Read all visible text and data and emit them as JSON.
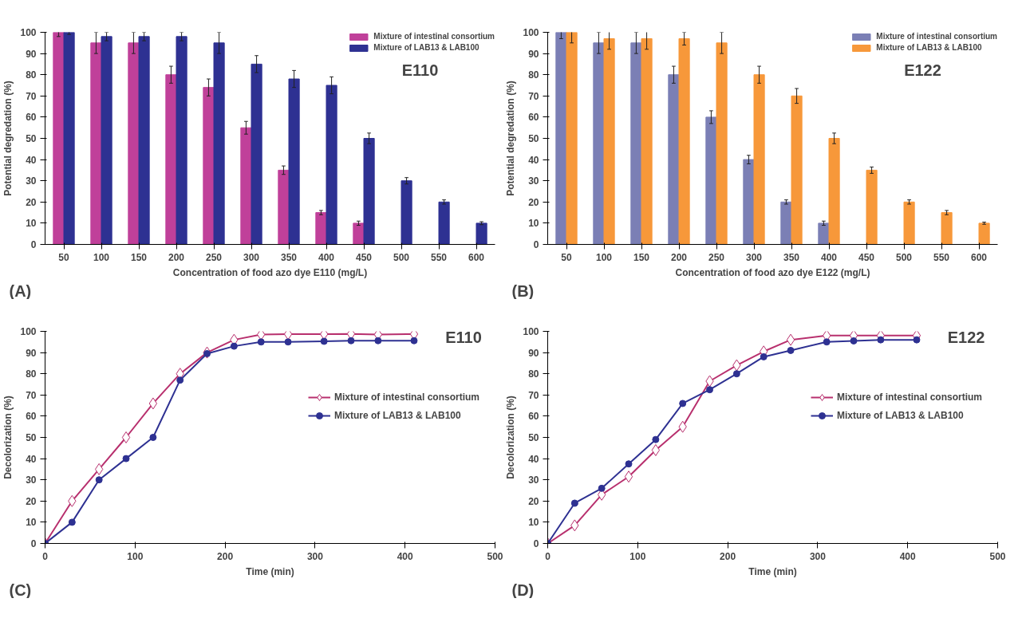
{
  "chart_data": [
    {
      "type": "bar",
      "xlabel": "Concentration of food azo dye E110 (mg/L)",
      "ylabel": "Potential degredation (%)",
      "annotations": [
        "E110",
        "(A)"
      ],
      "categories": [
        "50",
        "100",
        "150",
        "200",
        "250",
        "300",
        "350",
        "400",
        "450",
        "500",
        "550",
        "600"
      ],
      "ylim": [
        0,
        100
      ],
      "yticks": [
        0,
        10,
        20,
        30,
        40,
        50,
        60,
        70,
        80,
        90,
        100
      ],
      "grid": false,
      "legend": "top right",
      "series": [
        {
          "name": "Mixture of intestinal consortium",
          "color": "#c0409a",
          "values": [
            100,
            95,
            95,
            80,
            74,
            55,
            35,
            15,
            10,
            null,
            null,
            null
          ],
          "errors": [
            2,
            5,
            5,
            4,
            4,
            3,
            2,
            1,
            1,
            null,
            null,
            null
          ]
        },
        {
          "name": "Mixture of LAB13 & LAB100",
          "color": "#2e3192",
          "values": [
            100,
            98,
            98,
            98,
            95,
            85,
            78,
            75,
            50,
            30,
            20,
            10
          ],
          "errors": [
            1,
            2,
            2,
            2,
            5,
            4,
            4,
            4,
            2.5,
            1.5,
            1,
            0.7
          ]
        }
      ]
    },
    {
      "type": "bar",
      "xlabel": "Concentration of food azo dye E122 (mg/L)",
      "ylabel": "Potential degredation (%)",
      "annotations": [
        "E122",
        "(B)"
      ],
      "categories": [
        "50",
        "100",
        "150",
        "200",
        "250",
        "300",
        "350",
        "400",
        "450",
        "500",
        "550",
        "600"
      ],
      "ylim": [
        0,
        100
      ],
      "yticks": [
        0,
        10,
        20,
        30,
        40,
        50,
        60,
        70,
        80,
        90,
        100
      ],
      "grid": false,
      "legend": "top right",
      "series": [
        {
          "name": "Mixture of intestinal consortium",
          "color": "#7b7fb5",
          "values": [
            100,
            95,
            95,
            80,
            60,
            40,
            20,
            10,
            null,
            null,
            null,
            null
          ],
          "errors": [
            3,
            5,
            5,
            4,
            3,
            2,
            1,
            1,
            null,
            null,
            null,
            null
          ]
        },
        {
          "name": "Mixture of LAB13 & LAB100",
          "color": "#f7983a",
          "values": [
            100,
            97,
            97,
            97,
            95,
            80,
            70,
            50,
            35,
            20,
            15,
            10
          ],
          "errors": [
            5,
            5,
            5,
            3,
            5,
            4,
            3.5,
            2.5,
            1.5,
            1,
            1,
            0.5
          ]
        }
      ]
    },
    {
      "type": "line",
      "xlabel": "Time (min)",
      "ylabel": "Decolorization (%)",
      "annotations": [
        "E110",
        "(C)"
      ],
      "x": [
        0,
        30,
        60,
        90,
        120,
        150,
        180,
        210,
        240,
        270,
        310,
        340,
        370,
        410
      ],
      "xlim": [
        0,
        500
      ],
      "xticks": [
        0,
        100,
        200,
        300,
        400,
        500
      ],
      "ylim": [
        0,
        100
      ],
      "yticks": [
        0,
        10,
        20,
        30,
        40,
        50,
        60,
        70,
        80,
        90,
        100
      ],
      "grid": false,
      "legend": "right",
      "series": [
        {
          "name": "Mixture of intestinal consortium",
          "color": "#b8306e",
          "marker": "diamond",
          "values": [
            0,
            20,
            35,
            50,
            66,
            80,
            90,
            96,
            98.5,
            98.7,
            98.7,
            98.8,
            98.5,
            98.7
          ]
        },
        {
          "name": "Mixture of LAB13 & LAB100",
          "color": "#2e3192",
          "marker": "circle",
          "values": [
            0,
            10,
            30,
            40,
            50,
            77,
            89.5,
            93,
            95,
            95,
            95.3,
            95.6,
            95.6,
            95.6
          ]
        }
      ]
    },
    {
      "type": "line",
      "xlabel": "Time (min)",
      "ylabel": "Decolorization (%)",
      "annotations": [
        "E122",
        "(D)"
      ],
      "x": [
        0,
        30,
        60,
        90,
        120,
        150,
        180,
        210,
        240,
        270,
        310,
        340,
        370,
        410
      ],
      "xlim": [
        0,
        500
      ],
      "xticks": [
        0,
        100,
        200,
        300,
        400,
        500
      ],
      "ylim": [
        0,
        100
      ],
      "yticks": [
        0,
        10,
        20,
        30,
        40,
        50,
        60,
        70,
        80,
        90,
        100
      ],
      "grid": false,
      "legend": "right",
      "series": [
        {
          "name": "Mixture of intestinal consortium",
          "color": "#b8306e",
          "marker": "diamond",
          "values": [
            0,
            8.5,
            23,
            31.5,
            44,
            55,
            76.5,
            84,
            90.5,
            96,
            98,
            98,
            98,
            98
          ]
        },
        {
          "name": "Mixture of LAB13 & LAB100",
          "color": "#2e3192",
          "marker": "circle",
          "values": [
            0,
            19,
            26,
            37.5,
            49,
            66,
            72.5,
            80,
            88,
            91,
            95,
            95.5,
            96,
            96
          ]
        }
      ]
    }
  ]
}
